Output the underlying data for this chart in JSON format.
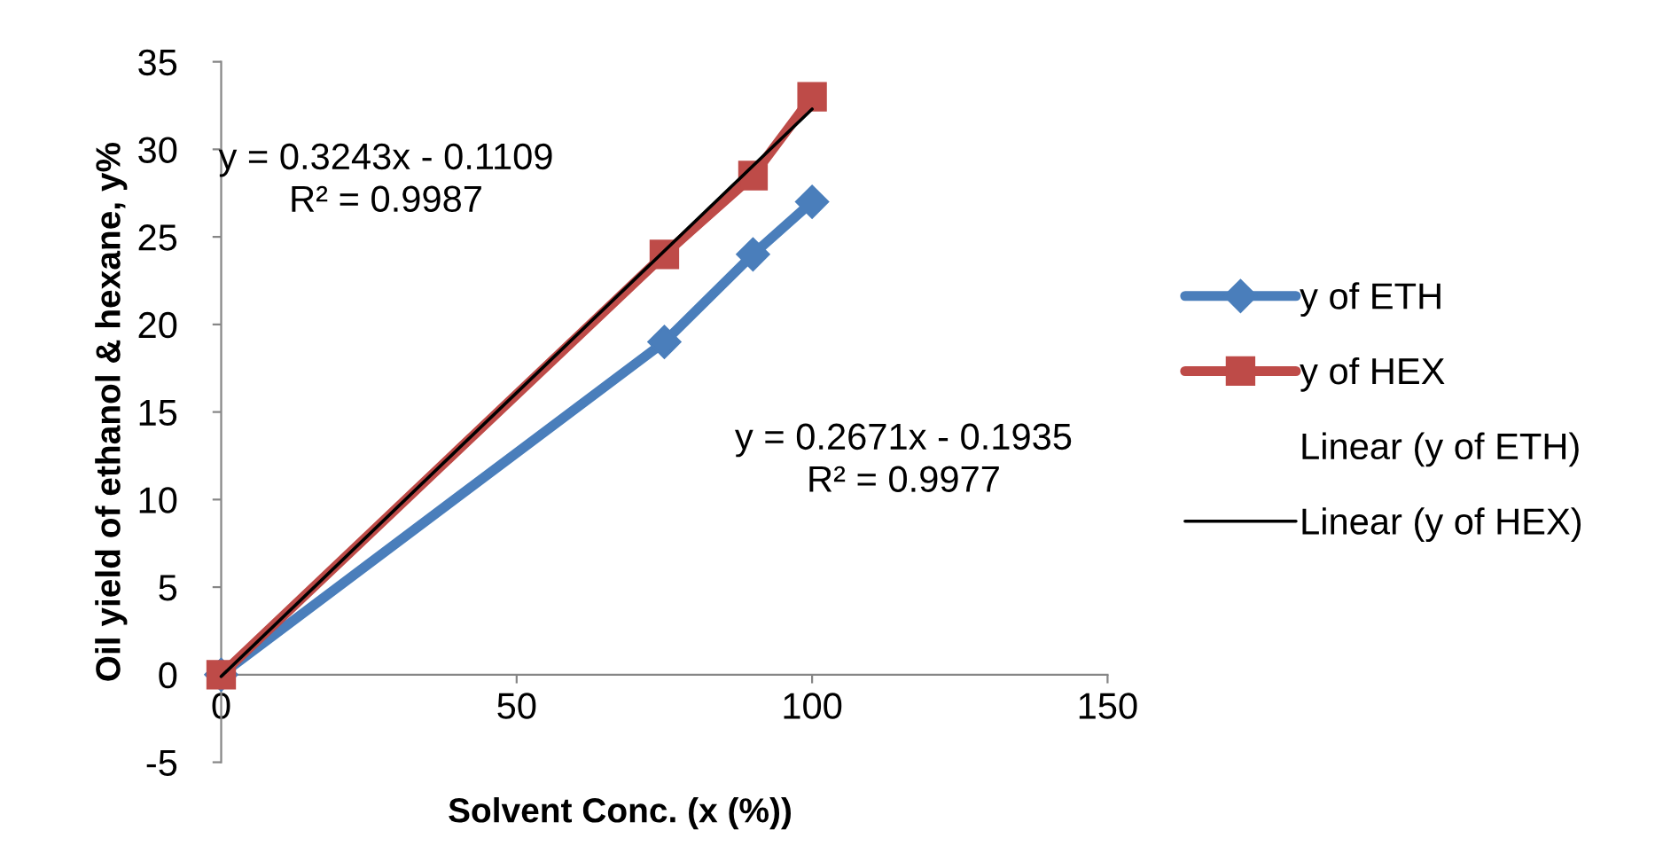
{
  "chart_data": {
    "type": "line",
    "xlabel": "Solvent Conc. (x (%))",
    "ylabel": "Oil yield of ethanol & hexane, y%",
    "xlim": [
      0,
      150
    ],
    "xticks": [
      0,
      50,
      100,
      150
    ],
    "ylim": [
      -5,
      35
    ],
    "yticks": [
      -5,
      0,
      5,
      10,
      15,
      20,
      25,
      30,
      35
    ],
    "grid": false,
    "legend": "right",
    "series": [
      {
        "name": "y of ETH",
        "color": "#4a7ebb",
        "marker": "diamond",
        "x": [
          0,
          75,
          90,
          100
        ],
        "values": [
          0,
          19,
          24,
          27
        ]
      },
      {
        "name": "y of HEX",
        "color": "#be4b48",
        "marker": "square",
        "x": [
          0,
          75,
          90,
          100
        ],
        "values": [
          0,
          24,
          28.5,
          33
        ]
      },
      {
        "name": "Linear (y of HEX)",
        "color": "#000000",
        "marker": "none",
        "x": [
          0,
          100
        ],
        "values": [
          -0.1,
          32.3
        ]
      }
    ],
    "annotations": [
      "y = 0.3243x - 0.1109\nR² = 0.9987",
      "y = 0.2671x - 0.1935\nR² = 0.9977",
      "Linear (y of ETH)"
    ]
  }
}
